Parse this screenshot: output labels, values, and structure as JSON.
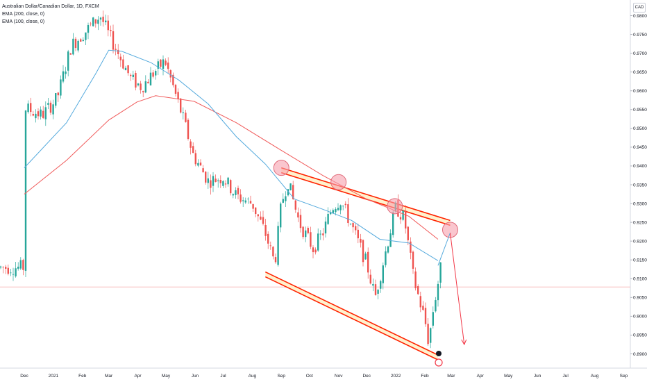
{
  "legend": {
    "symbol": "Australian Dollar/Canadian Dollar, 1D, FXCM",
    "ema200": "EMA (200, close, 0)",
    "ema100": "EMA (100, close, 0)"
  },
  "currency_badge": "CAD",
  "colors": {
    "up": "#26a69a",
    "down": "#ef5350",
    "ema200": "#f05a5a",
    "ema100": "#55aadd",
    "channel": "#ff2200",
    "channel_fill": "#fff1c9",
    "circle_fill": "#f6a0ad",
    "projection": "#f23645"
  },
  "chart_data": {
    "type": "candlestick",
    "title": "Australian Dollar/Canadian Dollar, 1D, FXCM",
    "x_ticks": [
      "Dec",
      "2021",
      "Feb",
      "Mar",
      "Apr",
      "May",
      "Jun",
      "Jul",
      "Aug",
      "Sep",
      "Oct",
      "Nov",
      "Dec",
      "2022",
      "Feb",
      "Mar",
      "Apr",
      "May",
      "Jun",
      "Jul",
      "Aug",
      "Sep"
    ],
    "y_ticks": [
      "0.98000",
      "0.97500",
      "0.97000",
      "0.96500",
      "0.96000",
      "0.95500",
      "0.95000",
      "0.94500",
      "0.94000",
      "0.93500",
      "0.93000",
      "0.92500",
      "0.92000",
      "0.91500",
      "0.91000",
      "0.90500",
      "0.90000",
      "0.89500",
      "0.89000"
    ],
    "ylim": [
      0.8885,
      0.9845
    ],
    "price_line": 0.9078,
    "series": [
      {
        "name": "EMA (200, close, 0)",
        "points": [
          [
            "2020-12-01",
            0.9325
          ],
          [
            "2021-01-15",
            0.9415
          ],
          [
            "2021-03-01",
            0.9522
          ],
          [
            "2021-03-31",
            0.957
          ],
          [
            "2021-04-20",
            0.9587
          ],
          [
            "2021-05-31",
            0.9572
          ],
          [
            "2021-07-15",
            0.9515
          ],
          [
            "2021-08-31",
            0.9443
          ],
          [
            "2021-10-15",
            0.9375
          ],
          [
            "2021-11-30",
            0.9313
          ],
          [
            "2022-01-15",
            0.9266
          ],
          [
            "2022-02-15",
            0.9205
          ]
        ]
      },
      {
        "name": "EMA (100, close, 0)",
        "points": [
          [
            "2020-12-01",
            0.9395
          ],
          [
            "2021-01-15",
            0.9515
          ],
          [
            "2021-02-15",
            0.9645
          ],
          [
            "2021-03-01",
            0.9708
          ],
          [
            "2021-03-15",
            0.9705
          ],
          [
            "2021-04-15",
            0.9675
          ],
          [
            "2021-05-15",
            0.9628
          ],
          [
            "2021-06-15",
            0.9565
          ],
          [
            "2021-07-15",
            0.9478
          ],
          [
            "2021-08-15",
            0.9405
          ],
          [
            "2021-09-15",
            0.9312
          ],
          [
            "2021-10-15",
            0.9285
          ],
          [
            "2021-11-15",
            0.9255
          ],
          [
            "2021-12-15",
            0.9205
          ],
          [
            "2022-01-15",
            0.9195
          ],
          [
            "2022-02-15",
            0.9148
          ]
        ]
      }
    ],
    "annotations": {
      "upper_channel": [
        [
          "2021-09-01",
          0.9395
        ],
        [
          "2022-02-28",
          0.9255
        ]
      ],
      "lower_channel": [
        [
          "2021-08-15",
          0.9118
        ],
        [
          "2022-02-15",
          0.8897
        ]
      ],
      "touch_points": [
        [
          "2021-09-01",
          0.9395
        ],
        [
          "2021-11-01",
          0.9357
        ],
        [
          "2021-12-31",
          0.9293
        ],
        [
          "2022-02-28",
          0.923
        ]
      ],
      "projection": [
        [
          "2022-02-15",
          0.9135
        ],
        [
          "2022-02-28",
          0.9222
        ],
        [
          "2022-03-15",
          0.8925
        ]
      ]
    },
    "grid": false
  }
}
